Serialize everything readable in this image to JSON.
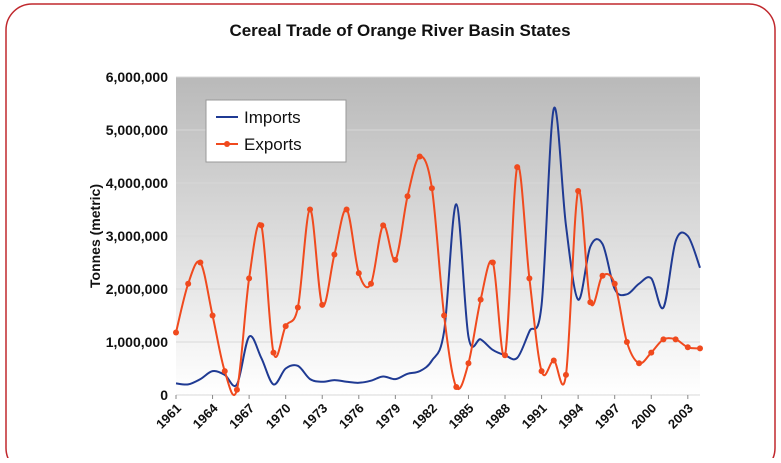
{
  "chart_data": {
    "type": "line",
    "title": "Cereal Trade of Orange River Basin States",
    "y_label": "Tonnes (metric)",
    "x": [
      1961,
      1962,
      1963,
      1964,
      1965,
      1966,
      1967,
      1968,
      1969,
      1970,
      1971,
      1972,
      1973,
      1974,
      1975,
      1976,
      1977,
      1978,
      1979,
      1980,
      1981,
      1982,
      1983,
      1984,
      1985,
      1986,
      1987,
      1988,
      1989,
      1990,
      1991,
      1992,
      1993,
      1994,
      1995,
      1996,
      1997,
      1998,
      1999,
      2000,
      2001,
      2002,
      2003,
      2004
    ],
    "series": [
      {
        "name": "Imports",
        "color": "#1f3a93",
        "marker": false,
        "values": [
          220000,
          200000,
          300000,
          450000,
          380000,
          200000,
          1100000,
          700000,
          200000,
          500000,
          550000,
          300000,
          250000,
          280000,
          250000,
          230000,
          270000,
          350000,
          300000,
          400000,
          450000,
          650000,
          1200000,
          3600000,
          1100000,
          1050000,
          850000,
          750000,
          700000,
          1200000,
          1700000,
          5400000,
          3200000,
          1800000,
          2800000,
          2850000,
          2000000,
          1900000,
          2100000,
          2200000,
          1650000,
          2900000,
          3000000,
          2400000
        ]
      },
      {
        "name": "Exports",
        "color": "#f04a1e",
        "marker": true,
        "values": [
          1180000,
          2100000,
          2500000,
          1500000,
          450000,
          100000,
          2200000,
          3200000,
          800000,
          1300000,
          1650000,
          3500000,
          1700000,
          2650000,
          3500000,
          2300000,
          2100000,
          3200000,
          2550000,
          3750000,
          4500000,
          3900000,
          1500000,
          150000,
          600000,
          1800000,
          2500000,
          750000,
          4300000,
          2200000,
          450000,
          650000,
          380000,
          3850000,
          1750000,
          2250000,
          2100000,
          1000000,
          600000,
          800000,
          1050000,
          1050000,
          900000,
          880000
        ]
      }
    ],
    "xlim": [
      1961,
      2004
    ],
    "xticks": [
      1961,
      1964,
      1967,
      1970,
      1973,
      1976,
      1979,
      1982,
      1985,
      1988,
      1991,
      1994,
      1997,
      2000,
      2003
    ],
    "ylim": [
      0,
      6000000
    ],
    "yticks": [
      0,
      {
        "value": 1000000,
        "label": "1,000,000"
      },
      {
        "value": 2000000,
        "label": "2,000,000"
      },
      {
        "value": 3000000,
        "label": "3,000,000"
      },
      {
        "value": 4000000,
        "label": "4,000,000"
      },
      {
        "value": 5000000,
        "label": "5,000,000"
      },
      {
        "value": 6000000,
        "label": "6,000,000"
      }
    ],
    "grid": true,
    "legend": "top-left"
  }
}
